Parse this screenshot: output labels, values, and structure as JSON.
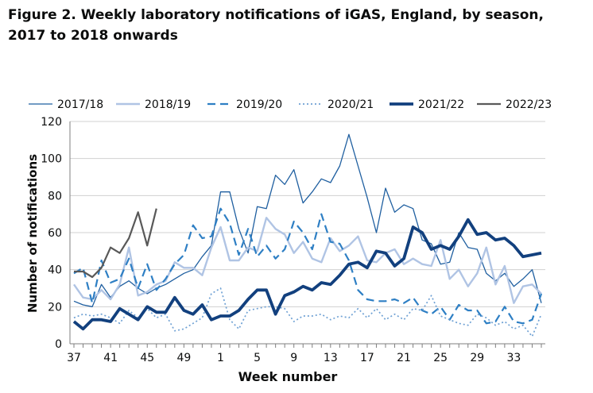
{
  "figure": {
    "title": "Figure 2. Weekly laboratory notifications of iGAS, England, by season, 2017 to 2018 onwards"
  },
  "chart_data": {
    "type": "line",
    "xlabel": "Week number",
    "ylabel": "Number of  notifications",
    "ylim": [
      0,
      120
    ],
    "yticks": [
      0,
      20,
      40,
      60,
      80,
      100,
      120
    ],
    "grid": true,
    "legend_position": "top",
    "x": [
      37,
      38,
      39,
      40,
      41,
      42,
      43,
      44,
      45,
      46,
      47,
      48,
      49,
      50,
      51,
      52,
      1,
      2,
      3,
      4,
      5,
      6,
      7,
      8,
      9,
      10,
      11,
      12,
      13,
      14,
      15,
      16,
      17,
      18,
      19,
      20,
      21,
      22,
      23,
      24,
      25,
      26,
      27,
      28,
      29,
      30,
      31,
      32,
      33,
      34,
      35,
      36
    ],
    "xtick_labels": [
      "37",
      "41",
      "45",
      "49",
      "1",
      "5",
      "9",
      "13",
      "17",
      "21",
      "25",
      "29",
      "33"
    ],
    "series": [
      {
        "name": "2017/18",
        "color": "#1f5fa0",
        "style": "solid",
        "width": 1.3,
        "values": [
          23,
          21,
          20,
          32,
          25,
          31,
          34,
          30,
          27,
          30,
          32,
          35,
          38,
          40,
          47,
          53,
          82,
          82,
          62,
          49,
          74,
          73,
          91,
          86,
          94,
          76,
          82,
          89,
          87,
          96,
          113,
          96,
          79,
          60,
          84,
          71,
          75,
          73,
          56,
          54,
          43,
          44,
          60,
          52,
          51,
          38,
          34,
          38,
          31,
          35,
          40,
          22
        ]
      },
      {
        "name": "2018/19",
        "color": "#b0c4e4",
        "style": "solid",
        "width": 2.4,
        "values": [
          32,
          25,
          24,
          29,
          24,
          32,
          52,
          26,
          28,
          32,
          34,
          44,
          41,
          41,
          37,
          52,
          63,
          45,
          45,
          52,
          50,
          68,
          62,
          59,
          49,
          55,
          46,
          44,
          57,
          50,
          53,
          58,
          45,
          44,
          49,
          51,
          43,
          46,
          43,
          42,
          56,
          35,
          40,
          31,
          38,
          52,
          32,
          42,
          22,
          31,
          32,
          27
        ]
      },
      {
        "name": "2019/20",
        "color": "#2e7fc4",
        "style": "dash",
        "width": 2.2,
        "values": [
          38,
          41,
          22,
          45,
          33,
          35,
          46,
          30,
          43,
          29,
          35,
          43,
          48,
          64,
          57,
          58,
          73,
          65,
          48,
          62,
          47,
          53,
          46,
          51,
          66,
          60,
          51,
          70,
          55,
          54,
          45,
          29,
          24,
          23,
          23,
          24,
          22,
          25,
          18,
          16,
          20,
          13,
          21,
          18,
          18,
          11,
          12,
          20,
          12,
          11,
          13,
          27
        ]
      },
      {
        "name": "2020/21",
        "color": "#6fa1d4",
        "style": "dot",
        "width": 1.7,
        "values": [
          14,
          16,
          15,
          16,
          14,
          11,
          18,
          14,
          19,
          14,
          16,
          7,
          8,
          11,
          14,
          27,
          30,
          13,
          8,
          18,
          19,
          20,
          20,
          19,
          12,
          15,
          15,
          16,
          13,
          15,
          14,
          19,
          14,
          19,
          13,
          16,
          13,
          19,
          18,
          26,
          15,
          13,
          11,
          10,
          16,
          14,
          10,
          12,
          8,
          10,
          4,
          16
        ]
      },
      {
        "name": "2021/22",
        "color": "#12407e",
        "style": "solid",
        "width": 3.8,
        "values": [
          12,
          8,
          13,
          13,
          12,
          19,
          16,
          13,
          20,
          17,
          17,
          25,
          18,
          16,
          21,
          13,
          15,
          15,
          18,
          24,
          29,
          29,
          16,
          26,
          28,
          31,
          29,
          33,
          32,
          37,
          43,
          44,
          41,
          50,
          49,
          42,
          46,
          63,
          60,
          51,
          53,
          51,
          58,
          67,
          59,
          60,
          56,
          57,
          53,
          47,
          48,
          49
        ]
      },
      {
        "name": "2022/23",
        "color": "#595959",
        "style": "solid",
        "width": 2.2,
        "values": [
          39,
          39,
          36,
          41,
          52,
          49,
          57,
          71,
          53,
          73,
          null,
          null,
          null,
          null,
          null,
          null,
          null,
          null,
          null,
          null,
          null,
          null,
          null,
          null,
          null,
          null,
          null,
          null,
          null,
          null,
          null,
          null,
          null,
          null,
          null,
          null,
          null,
          null,
          null,
          null,
          null,
          null,
          null,
          null,
          null,
          null,
          null,
          null,
          null,
          null,
          null,
          null
        ]
      }
    ]
  }
}
